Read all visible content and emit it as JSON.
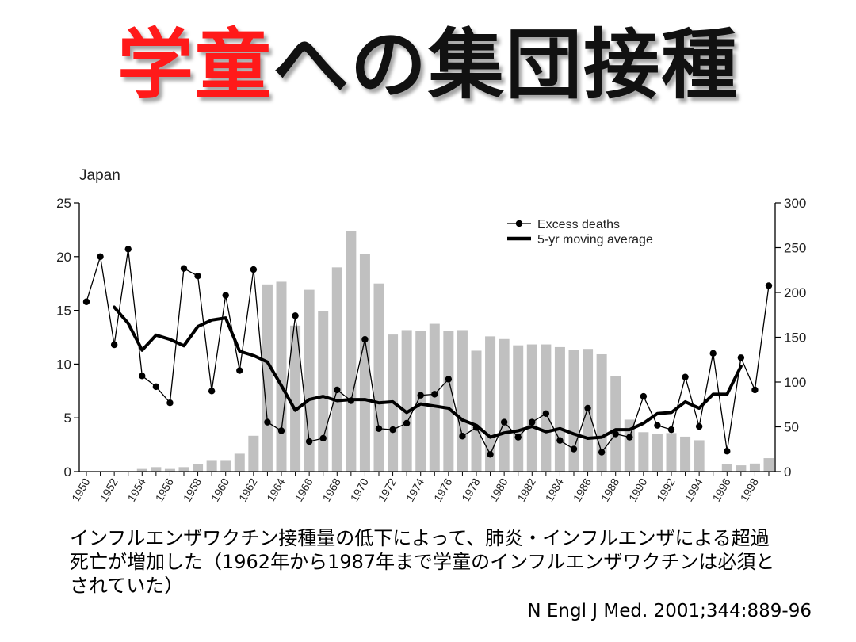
{
  "title": {
    "part1": "学童",
    "part2": "への集団接種"
  },
  "note": "インフルエンザワクチン接種量の低下によって、肺炎・インフルエンザによる超過死亡が増加した（1962年から1987年まで学童のインフルエンザワクチンは必須とされていた）",
  "citation": "N Engl J Med. 2001;344:889-96",
  "colors": {
    "title_accent": "#ff1a1a",
    "title_main": "#111111",
    "bars": "#c0c0c0",
    "lines": "#000000"
  },
  "chart_data": {
    "type": "bar",
    "panel_label": "Japan",
    "years": [
      1950,
      1951,
      1952,
      1953,
      1954,
      1955,
      1956,
      1957,
      1958,
      1959,
      1960,
      1961,
      1962,
      1963,
      1964,
      1965,
      1966,
      1967,
      1968,
      1969,
      1970,
      1971,
      1972,
      1973,
      1974,
      1975,
      1976,
      1977,
      1978,
      1979,
      1980,
      1981,
      1982,
      1983,
      1984,
      1985,
      1986,
      1987,
      1988,
      1989,
      1990,
      1991,
      1992,
      1993,
      1994,
      1995,
      1996,
      1997,
      1998,
      1999
    ],
    "x_tick_labels": [
      "1950",
      "1952",
      "1954",
      "1956",
      "1958",
      "1960",
      "1962",
      "1964",
      "1966",
      "1968",
      "1970",
      "1972",
      "1974",
      "1976",
      "1978",
      "1980",
      "1982",
      "1984",
      "1986",
      "1988",
      "1990",
      "1992",
      "1994",
      "1996",
      "1998"
    ],
    "y_left": {
      "ticks": [
        0,
        5,
        10,
        15,
        20,
        25
      ],
      "ylim": [
        0,
        25
      ]
    },
    "y_right": {
      "ticks": [
        0,
        50,
        100,
        150,
        200,
        250,
        300
      ],
      "ylim": [
        0,
        300
      ]
    },
    "bars_right_axis": [
      null,
      null,
      null,
      null,
      3,
      5,
      3,
      5,
      8,
      12,
      12,
      20,
      40,
      209,
      212,
      163,
      203,
      179,
      228,
      269,
      243,
      210,
      153,
      158,
      157,
      165,
      157,
      158,
      135,
      151,
      148,
      141,
      142,
      142,
      139,
      136,
      137,
      131,
      107,
      58,
      44,
      42,
      43,
      39,
      35,
      null,
      8,
      7,
      9,
      15
    ],
    "excess_deaths": [
      15.8,
      20.0,
      11.8,
      20.7,
      8.9,
      7.9,
      6.4,
      18.9,
      18.2,
      7.5,
      16.4,
      9.4,
      18.8,
      4.6,
      3.8,
      14.5,
      2.8,
      3.1,
      7.6,
      6.6,
      12.3,
      4.0,
      3.9,
      4.5,
      7.1,
      7.2,
      8.6,
      3.3,
      4.1,
      1.6,
      4.6,
      3.2,
      4.6,
      5.4,
      2.9,
      2.1,
      5.9,
      1.8,
      3.5,
      3.2,
      7.0,
      4.3,
      3.9,
      8.8,
      4.2,
      11.0,
      1.9,
      10.6,
      7.6,
      17.3
    ],
    "moving_average": [
      null,
      null,
      15.3,
      13.8,
      11.3,
      12.7,
      12.3,
      11.7,
      13.5,
      14.1,
      14.3,
      11.2,
      10.8,
      10.2,
      8.0,
      5.7,
      6.7,
      7.0,
      6.6,
      6.7,
      6.7,
      6.4,
      6.5,
      5.5,
      6.3,
      6.1,
      5.9,
      4.8,
      4.3,
      3.2,
      3.6,
      3.8,
      4.2,
      3.7,
      4.0,
      3.5,
      3.1,
      3.2,
      3.9,
      3.9,
      4.5,
      5.4,
      5.5,
      6.5,
      5.9,
      7.2,
      7.2,
      9.8,
      null,
      null
    ],
    "legend": [
      {
        "symbol": "line-dot",
        "label": "Excess deaths"
      },
      {
        "symbol": "thick-line",
        "label": "5-yr moving average"
      }
    ],
    "legend_position": "top-right",
    "grid": false
  }
}
